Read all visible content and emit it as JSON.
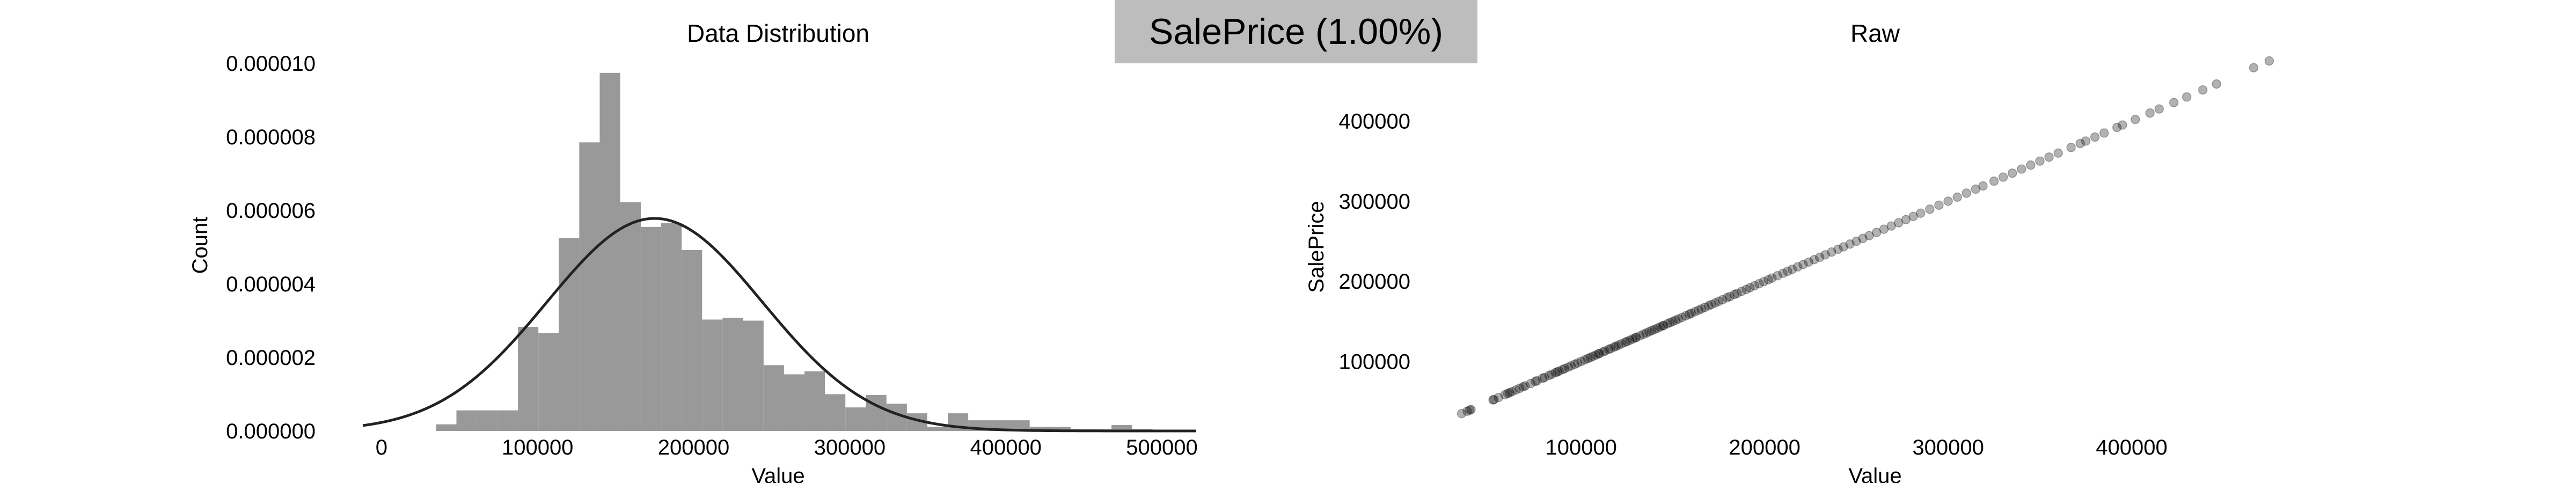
{
  "figure": {
    "suptitle": "SalePrice (1.00%)",
    "suptitle_box_color": "#bdbdbd"
  },
  "chart_data": [
    {
      "type": "histogram",
      "title": "Data Distribution",
      "xlabel": "Value",
      "ylabel": "Count",
      "xlim": [
        -12000,
        522000
      ],
      "ylim": [
        0,
        1e-05
      ],
      "xticks": [
        0,
        100000,
        200000,
        300000,
        400000,
        500000
      ],
      "yticks": [
        0,
        2e-06,
        4e-06,
        6e-06,
        8e-06,
        1e-05
      ],
      "xtick_labels": [
        "0",
        "100000",
        "200000",
        "300000",
        "400000",
        "500000"
      ],
      "ytick_labels": [
        "0.000000",
        "0.000002",
        "0.000004",
        "0.000006",
        "0.000008",
        "0.000010"
      ],
      "grid": false,
      "bar_color": "#999999",
      "bins": [
        {
          "x0": 34900,
          "x1": 48000,
          "density": 1.8e-07
        },
        {
          "x0": 48000,
          "x1": 61100,
          "density": 5.6e-07
        },
        {
          "x0": 61100,
          "x1": 74200,
          "density": 5.6e-07
        },
        {
          "x0": 74200,
          "x1": 87400,
          "density": 5.6e-07
        },
        {
          "x0": 87400,
          "x1": 100500,
          "density": 2.83e-06
        },
        {
          "x0": 100500,
          "x1": 113600,
          "density": 2.66e-06
        },
        {
          "x0": 113600,
          "x1": 126700,
          "density": 5.25e-06
        },
        {
          "x0": 126700,
          "x1": 139800,
          "density": 7.85e-06
        },
        {
          "x0": 139800,
          "x1": 152900,
          "density": 9.74e-06
        },
        {
          "x0": 152900,
          "x1": 166100,
          "density": 6.22e-06
        },
        {
          "x0": 166100,
          "x1": 179200,
          "density": 5.55e-06
        },
        {
          "x0": 179200,
          "x1": 192300,
          "density": 5.66e-06
        },
        {
          "x0": 192300,
          "x1": 205400,
          "density": 4.92e-06
        },
        {
          "x0": 205400,
          "x1": 218500,
          "density": 3.03e-06
        },
        {
          "x0": 218500,
          "x1": 231600,
          "density": 3.08e-06
        },
        {
          "x0": 231600,
          "x1": 244800,
          "density": 3e-06
        },
        {
          "x0": 244800,
          "x1": 257900,
          "density": 1.79e-06
        },
        {
          "x0": 257900,
          "x1": 271000,
          "density": 1.54e-06
        },
        {
          "x0": 271000,
          "x1": 284100,
          "density": 1.62e-06
        },
        {
          "x0": 284100,
          "x1": 297200,
          "density": 1e-06
        },
        {
          "x0": 297200,
          "x1": 310300,
          "density": 6.4e-07
        },
        {
          "x0": 310300,
          "x1": 323500,
          "density": 9.8e-07
        },
        {
          "x0": 323500,
          "x1": 336600,
          "density": 7.4e-07
        },
        {
          "x0": 336600,
          "x1": 349700,
          "density": 4.8e-07
        },
        {
          "x0": 349700,
          "x1": 362800,
          "density": 1.1e-07
        },
        {
          "x0": 362800,
          "x1": 375900,
          "density": 4.8e-07
        },
        {
          "x0": 375900,
          "x1": 389000,
          "density": 2.9e-07
        },
        {
          "x0": 389000,
          "x1": 402200,
          "density": 2.9e-07
        },
        {
          "x0": 402200,
          "x1": 415300,
          "density": 2.9e-07
        },
        {
          "x0": 415300,
          "x1": 428400,
          "density": 1.1e-07
        },
        {
          "x0": 428400,
          "x1": 441500,
          "density": 1.1e-07
        },
        {
          "x0": 441500,
          "x1": 454600,
          "density": 5e-08
        },
        {
          "x0": 454600,
          "x1": 467700,
          "density": 5e-08
        },
        {
          "x0": 467700,
          "x1": 480900,
          "density": 1.6e-07
        },
        {
          "x0": 480900,
          "x1": 494000,
          "density": 5e-08
        }
      ],
      "normal_curve": {
        "mean": 175000,
        "std": 69000,
        "color": "#222222"
      }
    },
    {
      "type": "scatter",
      "title": "Raw",
      "xlabel": "Value",
      "ylabel": "SalePrice",
      "xlim": [
        28000,
        493000
      ],
      "ylim": [
        22000,
        472000
      ],
      "xticks": [
        100000,
        200000,
        300000,
        400000
      ],
      "yticks": [
        100000,
        200000,
        300000,
        400000
      ],
      "xtick_labels": [
        "100000",
        "200000",
        "300000",
        "400000"
      ],
      "ytick_labels": [
        "100000",
        "200000",
        "300000",
        "400000"
      ],
      "grid": false,
      "marker_color": "#000000",
      "marker_alpha": 0.3,
      "relation": "y = x",
      "points": [
        [
          34900,
          34900
        ],
        [
          37900,
          37900
        ],
        [
          39300,
          39300
        ],
        [
          40000,
          40000
        ],
        [
          52000,
          52000
        ],
        [
          52500,
          52500
        ],
        [
          55000,
          55000
        ],
        [
          58500,
          58500
        ],
        [
          60000,
          60000
        ],
        [
          61000,
          61000
        ],
        [
          62383,
          62383
        ],
        [
          64500,
          64500
        ],
        [
          66500,
          66500
        ],
        [
          68400,
          68400
        ],
        [
          69500,
          69500
        ],
        [
          72500,
          72500
        ],
        [
          75000,
          75000
        ],
        [
          76000,
          76000
        ],
        [
          79000,
          79000
        ],
        [
          80000,
          80000
        ],
        [
          82500,
          82500
        ],
        [
          84000,
          84000
        ],
        [
          86000,
          86000
        ],
        [
          87000,
          87000
        ],
        [
          88000,
          88000
        ],
        [
          90000,
          90000
        ],
        [
          91000,
          91000
        ],
        [
          93000,
          93000
        ],
        [
          94500,
          94500
        ],
        [
          96500,
          96500
        ],
        [
          98000,
          98000
        ],
        [
          100000,
          100000
        ],
        [
          102000,
          102000
        ],
        [
          103600,
          103600
        ],
        [
          105000,
          105000
        ],
        [
          106500,
          106500
        ],
        [
          108000,
          108000
        ],
        [
          109500,
          109500
        ],
        [
          110000,
          110000
        ],
        [
          112000,
          112000
        ],
        [
          113000,
          113000
        ],
        [
          115000,
          115000
        ],
        [
          116000,
          116000
        ],
        [
          118000,
          118000
        ],
        [
          119000,
          119000
        ],
        [
          120500,
          120500
        ],
        [
          122000,
          122000
        ],
        [
          124000,
          124000
        ],
        [
          125000,
          125000
        ],
        [
          126500,
          126500
        ],
        [
          128000,
          128000
        ],
        [
          129500,
          129500
        ],
        [
          130000,
          130000
        ],
        [
          132000,
          132000
        ],
        [
          134000,
          134000
        ],
        [
          135500,
          135500
        ],
        [
          137000,
          137000
        ],
        [
          138500,
          138500
        ],
        [
          140000,
          140000
        ],
        [
          141500,
          141500
        ],
        [
          143000,
          143000
        ],
        [
          144500,
          144500
        ],
        [
          145000,
          145000
        ],
        [
          147000,
          147000
        ],
        [
          148500,
          148500
        ],
        [
          150000,
          150000
        ],
        [
          151500,
          151500
        ],
        [
          153000,
          153000
        ],
        [
          155000,
          155000
        ],
        [
          157000,
          157000
        ],
        [
          159000,
          159000
        ],
        [
          160000,
          160000
        ],
        [
          162000,
          162000
        ],
        [
          164000,
          164000
        ],
        [
          165500,
          165500
        ],
        [
          167500,
          167500
        ],
        [
          169500,
          169500
        ],
        [
          171000,
          171000
        ],
        [
          173000,
          173000
        ],
        [
          175000,
          175000
        ],
        [
          177000,
          177000
        ],
        [
          179500,
          179500
        ],
        [
          181000,
          181000
        ],
        [
          183500,
          183500
        ],
        [
          185000,
          185000
        ],
        [
          187500,
          187500
        ],
        [
          190000,
          190000
        ],
        [
          192000,
          192000
        ],
        [
          194500,
          194500
        ],
        [
          197000,
          197000
        ],
        [
          199500,
          199500
        ],
        [
          202000,
          202000
        ],
        [
          204000,
          204000
        ],
        [
          207000,
          207000
        ],
        [
          210000,
          210000
        ],
        [
          212500,
          212500
        ],
        [
          215000,
          215000
        ],
        [
          218000,
          218000
        ],
        [
          221000,
          221000
        ],
        [
          224000,
          224000
        ],
        [
          227000,
          227000
        ],
        [
          230000,
          230000
        ],
        [
          233000,
          233000
        ],
        [
          236500,
          236500
        ],
        [
          240000,
          240000
        ],
        [
          243000,
          243000
        ],
        [
          246500,
          246500
        ],
        [
          250000,
          250000
        ],
        [
          253500,
          253500
        ],
        [
          257000,
          257000
        ],
        [
          261000,
          261000
        ],
        [
          265000,
          265000
        ],
        [
          269000,
          269000
        ],
        [
          273000,
          273000
        ],
        [
          277000,
          277000
        ],
        [
          281000,
          281000
        ],
        [
          285000,
          285000
        ],
        [
          290000,
          290000
        ],
        [
          295000,
          295000
        ],
        [
          300000,
          300000
        ],
        [
          305000,
          305000
        ],
        [
          310000,
          310000
        ],
        [
          315000,
          315000
        ],
        [
          319000,
          319000
        ],
        [
          325000,
          325000
        ],
        [
          330000,
          330000
        ],
        [
          335000,
          335000
        ],
        [
          340000,
          340000
        ],
        [
          345000,
          345000
        ],
        [
          350000,
          350000
        ],
        [
          355000,
          355000
        ],
        [
          360000,
          360000
        ],
        [
          367000,
          367000
        ],
        [
          372000,
          372000
        ],
        [
          375000,
          375000
        ],
        [
          380000,
          380000
        ],
        [
          385000,
          385000
        ],
        [
          392000,
          392000
        ],
        [
          395000,
          395000
        ],
        [
          402000,
          402000
        ],
        [
          410000,
          410000
        ],
        [
          415000,
          415000
        ],
        [
          423000,
          423000
        ],
        [
          430000,
          430000
        ],
        [
          438780,
          438780
        ],
        [
          446261,
          446261
        ],
        [
          466500,
          466500
        ],
        [
          475000,
          475000
        ]
      ]
    }
  ]
}
